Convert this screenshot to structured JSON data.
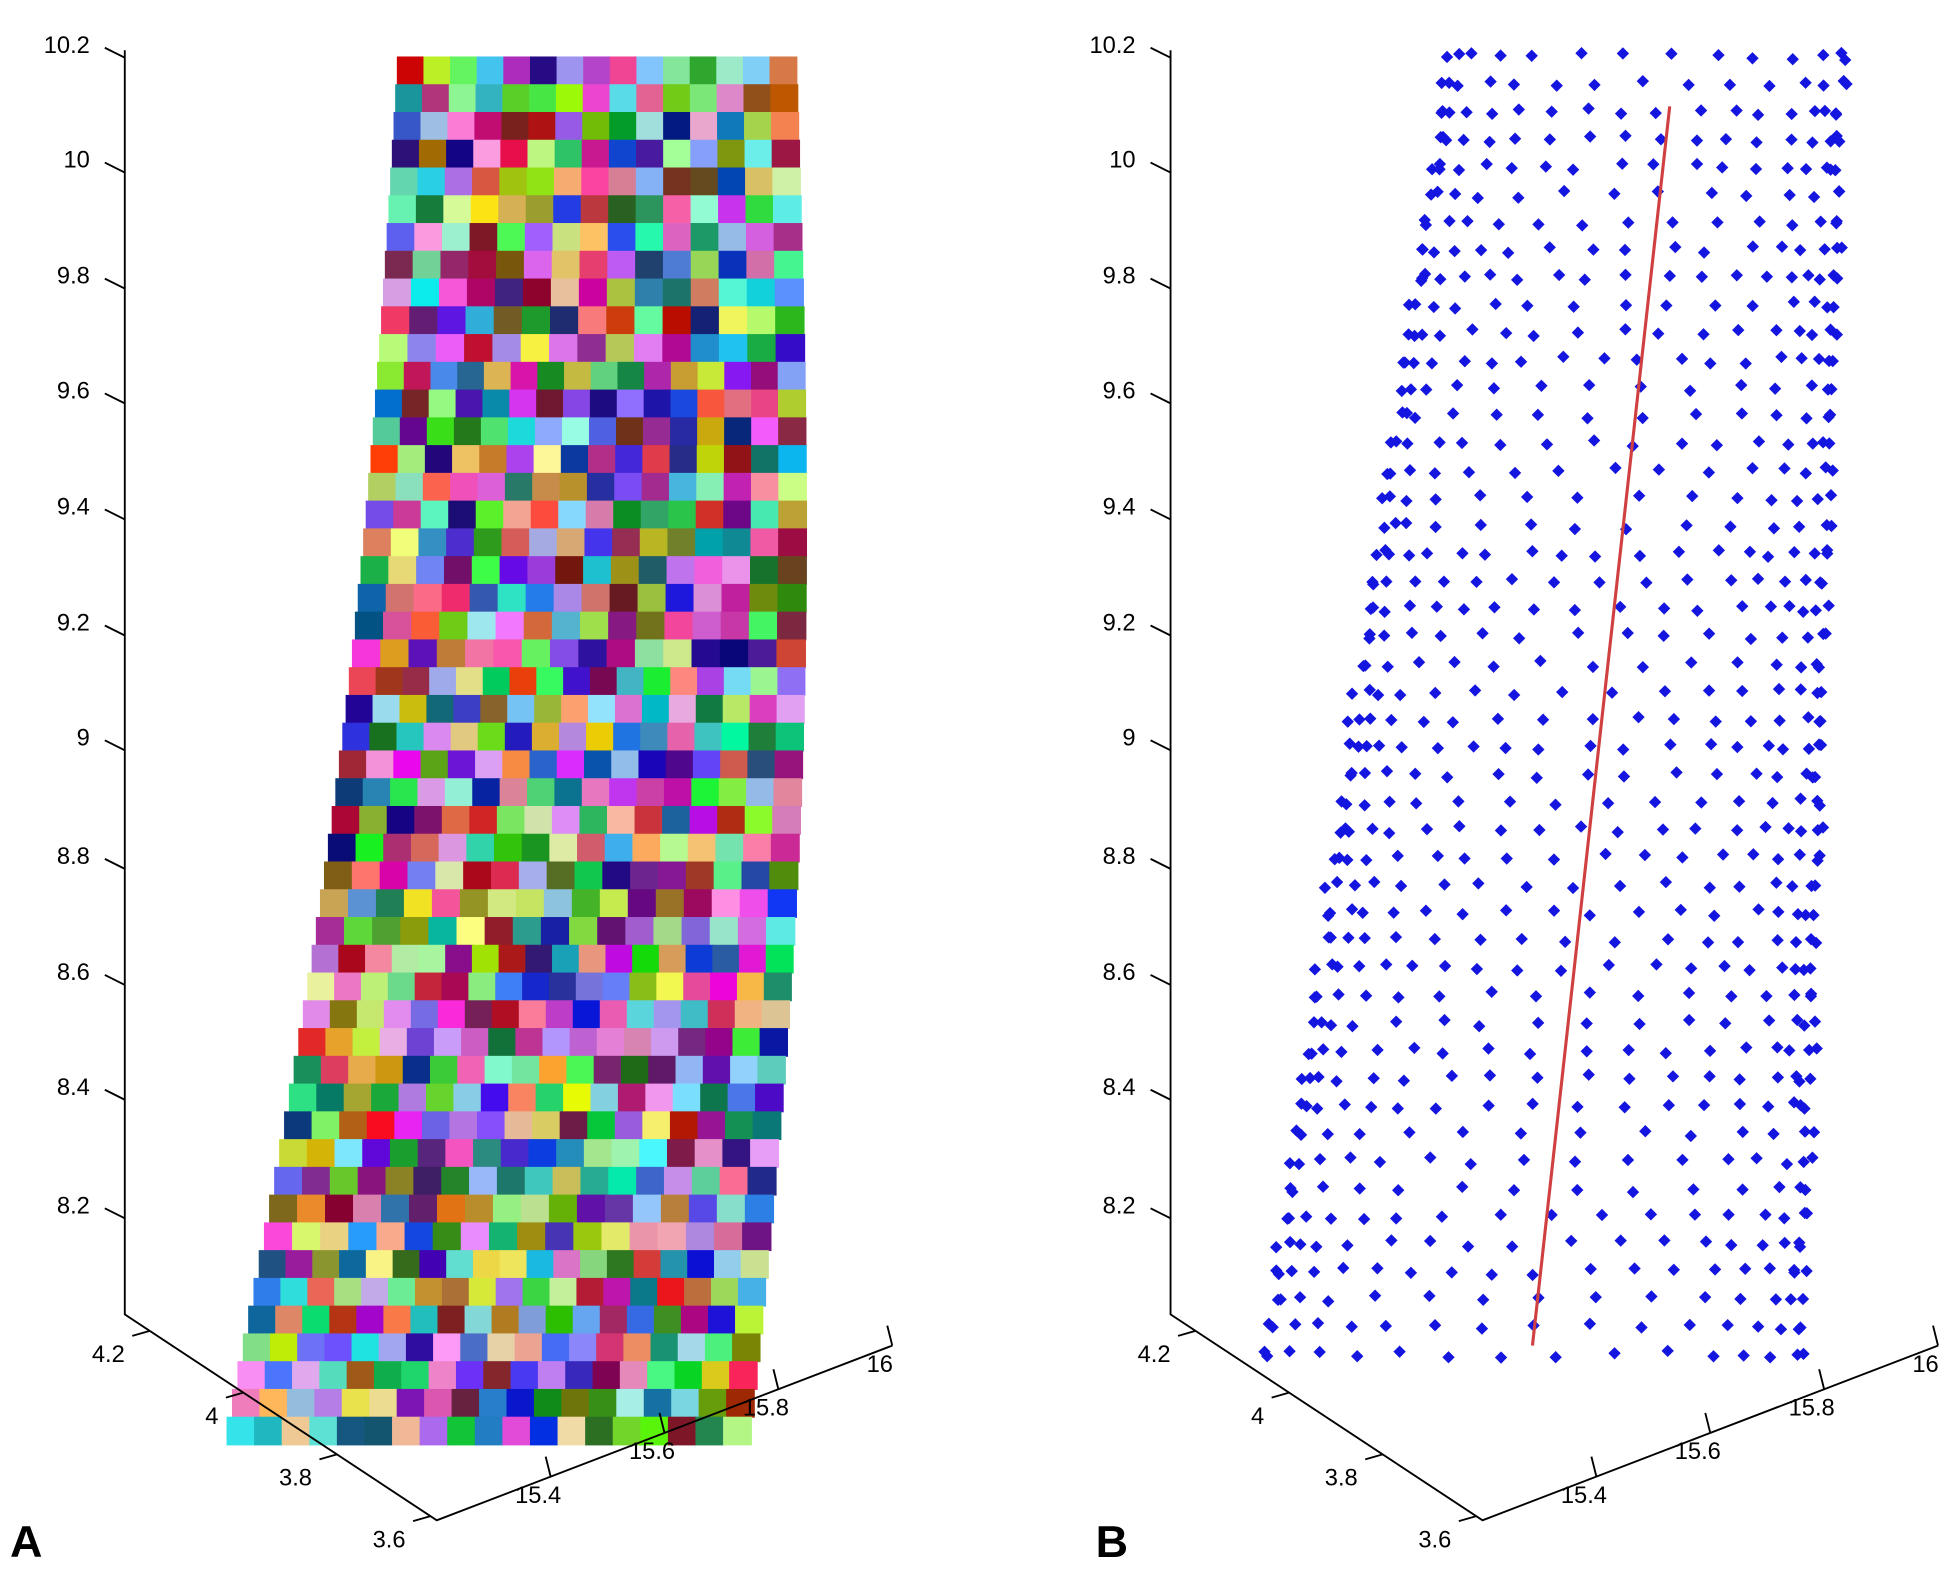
{
  "panels": [
    {
      "label": "A",
      "zticks": [
        10.2,
        10,
        9.8,
        9.6,
        9.4,
        9.2,
        9,
        8.8,
        8.6,
        8.4,
        8.2
      ],
      "yticks": [
        4.2,
        4,
        3.8,
        3.6
      ],
      "xticks": [
        15.4,
        15.6,
        15.8,
        16
      ]
    },
    {
      "label": "B",
      "zticks": [
        10.2,
        10,
        9.8,
        9.6,
        9.4,
        9.2,
        9,
        8.8,
        8.6,
        8.4,
        8.2
      ],
      "yticks": [
        4.2,
        4,
        3.8,
        3.6
      ],
      "xticks": [
        15.4,
        15.6,
        15.8,
        16
      ]
    }
  ]
}
